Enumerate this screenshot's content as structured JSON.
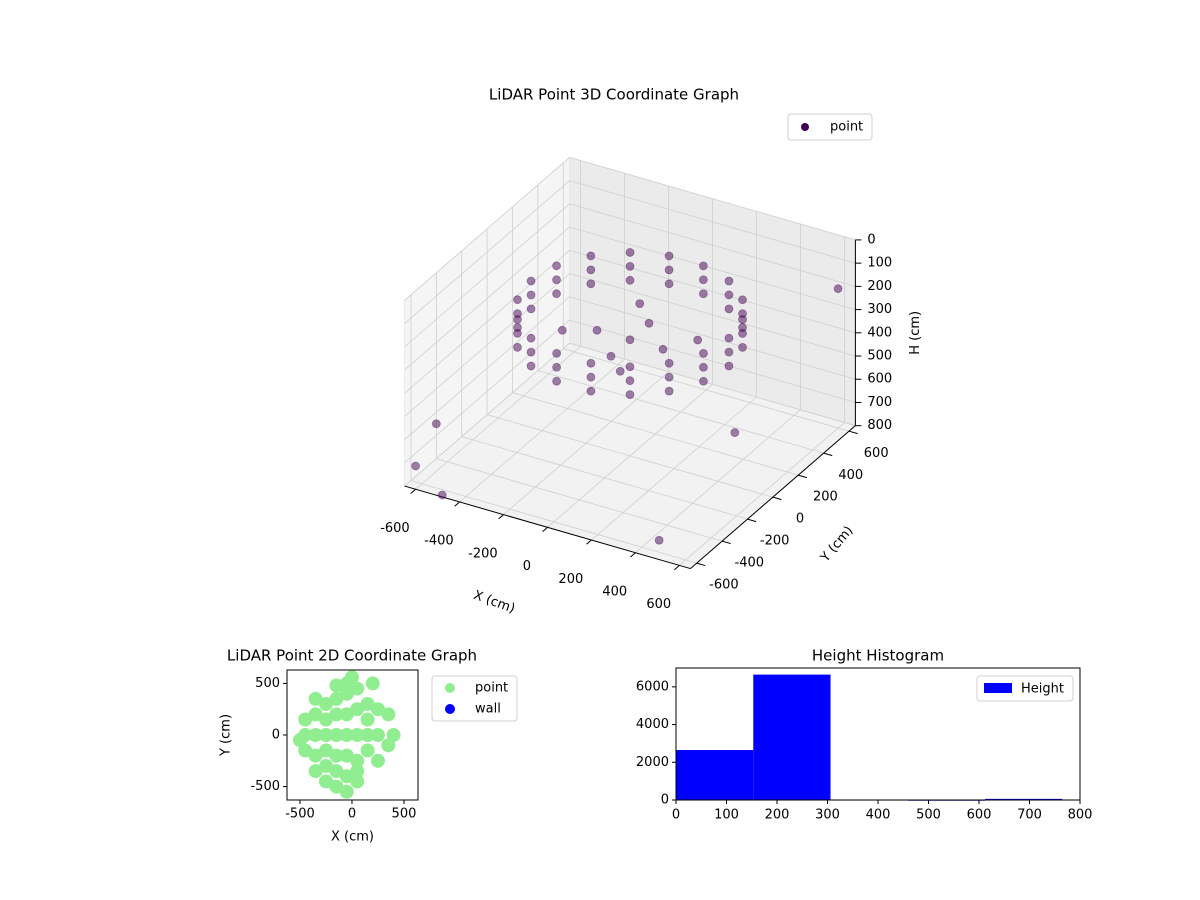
{
  "chart_data": [
    {
      "type": "scatter3d",
      "title": "LiDAR Point 3D Coordinate Graph",
      "xlabel": "X (cm)",
      "ylabel": "Y (cm)",
      "zlabel": "H (cm)",
      "xlim": [
        -650,
        650
      ],
      "ylim": [
        -650,
        650
      ],
      "zlim": [
        0,
        800
      ],
      "z_inverted": true,
      "xticks": [
        -600,
        -400,
        -200,
        0,
        200,
        400,
        600
      ],
      "yticks": [
        -600,
        -400,
        -200,
        0,
        200,
        400,
        600
      ],
      "zticks": [
        0,
        100,
        200,
        300,
        400,
        500,
        600,
        700,
        800
      ],
      "grid": true,
      "legend": "upper right",
      "series": [
        {
          "name": "point",
          "color": "#440154",
          "x": [
            450,
            423,
            345,
            225,
            78,
            -78,
            -225,
            -345,
            -423,
            -450,
            -423,
            -345,
            -225,
            -78,
            78,
            225,
            345,
            423,
            450,
            423,
            345,
            225,
            78,
            -78,
            -225,
            -345,
            -423,
            -450,
            -423,
            -345,
            -225,
            -78,
            78,
            225,
            345,
            423,
            450,
            423,
            345,
            225,
            78,
            -78,
            -225,
            -345,
            -423,
            -450,
            -423,
            -345,
            -225,
            -78,
            78,
            225,
            345,
            423,
            0,
            150,
            -150,
            0,
            0,
            250,
            -250,
            100,
            -100,
            600,
            450,
            -650,
            -600,
            -450,
            650
          ],
          "y": [
            0,
            154,
            289,
            390,
            443,
            443,
            390,
            289,
            154,
            0,
            -154,
            -289,
            -390,
            -443,
            -443,
            -390,
            -289,
            -154,
            0,
            154,
            289,
            390,
            443,
            443,
            390,
            289,
            154,
            0,
            -154,
            -289,
            -390,
            -443,
            -443,
            -390,
            -289,
            -154,
            0,
            154,
            289,
            390,
            443,
            443,
            390,
            289,
            154,
            0,
            -154,
            -289,
            -390,
            -443,
            -443,
            -390,
            -289,
            -154,
            0,
            0,
            0,
            150,
            -150,
            100,
            -100,
            -250,
            250,
            600,
            -550,
            -400,
            -650,
            -700,
            -300
          ],
          "h": [
            170,
            170,
            170,
            170,
            170,
            170,
            170,
            170,
            170,
            170,
            170,
            170,
            170,
            170,
            170,
            170,
            170,
            170,
            230,
            230,
            230,
            230,
            230,
            230,
            230,
            230,
            230,
            230,
            230,
            230,
            230,
            230,
            230,
            230,
            230,
            230,
            290,
            290,
            290,
            290,
            290,
            290,
            290,
            290,
            290,
            290,
            290,
            290,
            290,
            290,
            290,
            290,
            290,
            290,
            300,
            300,
            300,
            300,
            300,
            280,
            280,
            290,
            290,
            200,
            780,
            650,
            700,
            760,
            380
          ]
        }
      ]
    },
    {
      "type": "scatter",
      "title": "LiDAR Point 2D Coordinate Graph",
      "xlabel": "X (cm)",
      "ylabel": "Y (cm)",
      "xlim": [
        -625,
        635
      ],
      "ylim": [
        -630,
        630
      ],
      "xticks": [
        -500,
        0,
        500
      ],
      "yticks": [
        -500,
        0,
        500
      ],
      "legend": "outside right",
      "series": [
        {
          "name": "point",
          "color": "#90ee90",
          "x": [
            -450,
            -450,
            -450,
            -350,
            -350,
            -350,
            -350,
            -350,
            -250,
            -250,
            -250,
            -250,
            -250,
            -250,
            -150,
            -150,
            -150,
            -150,
            -150,
            -150,
            -150,
            -50,
            -50,
            -50,
            -50,
            -50,
            -50,
            -50,
            50,
            50,
            50,
            50,
            50,
            50,
            150,
            150,
            150,
            150,
            250,
            250,
            250,
            350,
            350,
            400,
            -500,
            0,
            200
          ],
          "y": [
            -150,
            0,
            150,
            -350,
            -200,
            0,
            200,
            350,
            -450,
            -300,
            -150,
            0,
            150,
            300,
            -500,
            -350,
            -200,
            0,
            200,
            350,
            480,
            -550,
            -400,
            -200,
            0,
            200,
            400,
            500,
            -450,
            -250,
            0,
            250,
            450,
            -350,
            0,
            300,
            -150,
            150,
            -250,
            0,
            250,
            -100,
            200,
            0,
            -50,
            560,
            500
          ]
        },
        {
          "name": "wall",
          "color": "#0000ff",
          "x": [],
          "y": []
        }
      ]
    },
    {
      "type": "histogram",
      "title": "Height Histogram",
      "label": "Height",
      "color": "#0000ff",
      "bins": [
        0,
        153,
        306,
        459,
        612,
        765
      ],
      "values": [
        2650,
        6650,
        25,
        15,
        60
      ],
      "xlim": [
        0,
        800
      ],
      "ylim": [
        0,
        7000
      ],
      "xticks": [
        0,
        100,
        200,
        300,
        400,
        500,
        600,
        700,
        800
      ],
      "yticks": [
        0,
        2000,
        4000,
        6000
      ],
      "legend": "upper right"
    }
  ]
}
